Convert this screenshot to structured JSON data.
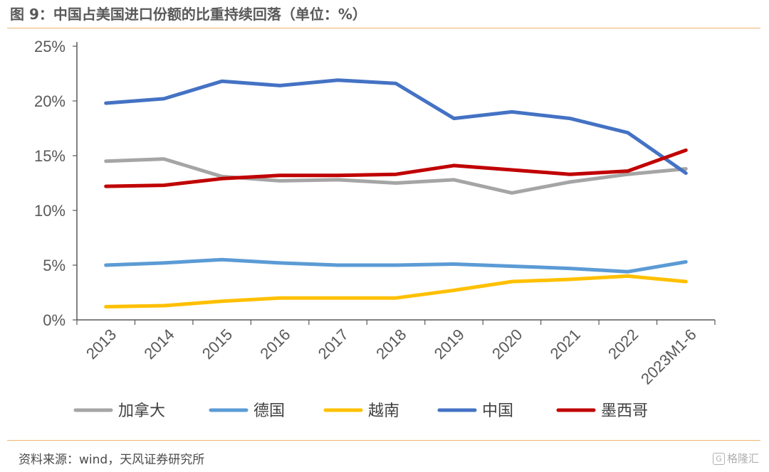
{
  "header": {
    "title": "图 9：中国占美国进口份额的比重持续回落（单位：%）"
  },
  "footer": {
    "source": "资料来源：wind，天风证券研究所",
    "watermark": "格隆汇"
  },
  "colors": {
    "rule": "#f0b46e"
  },
  "chart_data": {
    "type": "line",
    "title": "",
    "xlabel": "",
    "ylabel": "",
    "ylim": [
      0,
      25
    ],
    "yticks": [
      "0%",
      "5%",
      "10%",
      "15%",
      "20%",
      "25%"
    ],
    "grid": false,
    "legend_position": "bottom",
    "categories": [
      "2013",
      "2014",
      "2015",
      "2016",
      "2017",
      "2018",
      "2019",
      "2020",
      "2021",
      "2022",
      "2023M1-6"
    ],
    "series": [
      {
        "name": "加拿大",
        "color": "#a5a5a5",
        "values": [
          14.5,
          14.7,
          13.1,
          12.7,
          12.8,
          12.5,
          12.8,
          11.6,
          12.6,
          13.3,
          13.8
        ]
      },
      {
        "name": "德国",
        "color": "#5b9bd5",
        "values": [
          5.0,
          5.2,
          5.5,
          5.2,
          5.0,
          5.0,
          5.1,
          4.9,
          4.7,
          4.4,
          5.3
        ]
      },
      {
        "name": "越南",
        "color": "#ffc000",
        "values": [
          1.2,
          1.3,
          1.7,
          2.0,
          2.0,
          2.0,
          2.7,
          3.5,
          3.7,
          4.0,
          3.5
        ]
      },
      {
        "name": "中国",
        "color": "#4472c4",
        "values": [
          19.8,
          20.2,
          21.8,
          21.4,
          21.9,
          21.6,
          18.4,
          19.0,
          18.4,
          17.1,
          13.4
        ]
      },
      {
        "name": "墨西哥",
        "color": "#c00000",
        "values": [
          12.2,
          12.3,
          12.9,
          13.2,
          13.2,
          13.3,
          14.1,
          13.7,
          13.3,
          13.6,
          15.5
        ]
      }
    ]
  }
}
